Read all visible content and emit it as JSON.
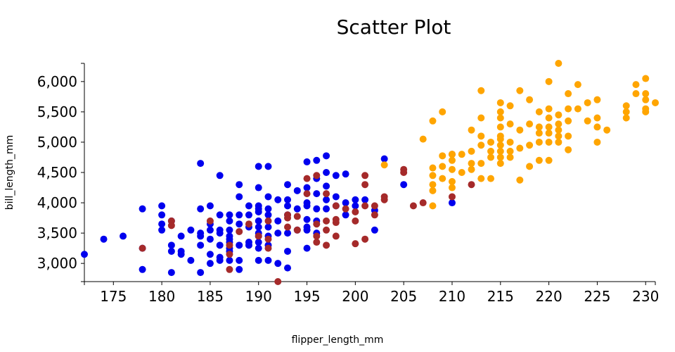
{
  "chart_data": {
    "type": "scatter",
    "title": "Scatter Plot",
    "xlabel": "flipper_length_mm",
    "ylabel": "bill_length_mm",
    "xlim": [
      172,
      231
    ],
    "ylim": [
      2700,
      6300
    ],
    "xticks": [
      175,
      180,
      185,
      190,
      195,
      200,
      205,
      210,
      215,
      220,
      225,
      230
    ],
    "yticks": [
      3000,
      3500,
      4000,
      4500,
      5000,
      5500,
      6000
    ],
    "ytick_labels": [
      "3,000",
      "3,500",
      "4,000",
      "4,500",
      "5,000",
      "5,500",
      "6,000"
    ],
    "grid": false,
    "legend": "none",
    "series": [
      {
        "color": "#0000ee",
        "points": [
          [
            172,
            3150
          ],
          [
            174,
            3400
          ],
          [
            176,
            3450
          ],
          [
            178,
            3900
          ],
          [
            178,
            3250
          ],
          [
            178,
            2900
          ],
          [
            180,
            3950
          ],
          [
            180,
            3800
          ],
          [
            180,
            3650
          ],
          [
            180,
            3550
          ],
          [
            181,
            3700
          ],
          [
            181,
            3300
          ],
          [
            181,
            3200
          ],
          [
            181,
            2850
          ],
          [
            182,
            3450
          ],
          [
            182,
            3200
          ],
          [
            182,
            3150
          ],
          [
            183,
            3550
          ],
          [
            183,
            3050
          ],
          [
            184,
            4650
          ],
          [
            184,
            3900
          ],
          [
            184,
            3500
          ],
          [
            184,
            3450
          ],
          [
            184,
            3300
          ],
          [
            184,
            2850
          ],
          [
            185,
            3950
          ],
          [
            185,
            3650
          ],
          [
            185,
            3550
          ],
          [
            185,
            3400
          ],
          [
            185,
            3150
          ],
          [
            185,
            3000
          ],
          [
            186,
            4450
          ],
          [
            186,
            3800
          ],
          [
            186,
            3550
          ],
          [
            186,
            3500
          ],
          [
            186,
            3300
          ],
          [
            186,
            3100
          ],
          [
            186,
            3050
          ],
          [
            187,
            3800
          ],
          [
            187,
            3700
          ],
          [
            187,
            3550
          ],
          [
            187,
            3450
          ],
          [
            187,
            3400
          ],
          [
            187,
            3350
          ],
          [
            187,
            3250
          ],
          [
            187,
            3200
          ],
          [
            187,
            3050
          ],
          [
            188,
            4300
          ],
          [
            188,
            4100
          ],
          [
            188,
            3800
          ],
          [
            188,
            3650
          ],
          [
            188,
            3300
          ],
          [
            188,
            3050
          ],
          [
            188,
            2900
          ],
          [
            189,
            3950
          ],
          [
            189,
            3800
          ],
          [
            189,
            3600
          ],
          [
            189,
            3350
          ],
          [
            189,
            3300
          ],
          [
            190,
            4600
          ],
          [
            190,
            4250
          ],
          [
            190,
            3950
          ],
          [
            190,
            3900
          ],
          [
            190,
            3850
          ],
          [
            190,
            3700
          ],
          [
            190,
            3600
          ],
          [
            190,
            3500
          ],
          [
            190,
            3450
          ],
          [
            190,
            3350
          ],
          [
            190,
            3250
          ],
          [
            190,
            3050
          ],
          [
            191,
            4600
          ],
          [
            191,
            4100
          ],
          [
            191,
            3900
          ],
          [
            191,
            3800
          ],
          [
            191,
            3600
          ],
          [
            191,
            3450
          ],
          [
            191,
            3300
          ],
          [
            191,
            3050
          ],
          [
            192,
            4050
          ],
          [
            192,
            3700
          ],
          [
            192,
            3500
          ],
          [
            192,
            3000
          ],
          [
            193,
            4300
          ],
          [
            193,
            4050
          ],
          [
            193,
            3950
          ],
          [
            193,
            3800
          ],
          [
            193,
            3500
          ],
          [
            193,
            3200
          ],
          [
            193,
            2925
          ],
          [
            194,
            4200
          ],
          [
            194,
            3900
          ],
          [
            194,
            3550
          ],
          [
            195,
            4675
          ],
          [
            195,
            4250
          ],
          [
            195,
            4000
          ],
          [
            195,
            3950
          ],
          [
            195,
            3725
          ],
          [
            195,
            3600
          ],
          [
            195,
            3550
          ],
          [
            195,
            3250
          ],
          [
            196,
            4700
          ],
          [
            196,
            4400
          ],
          [
            196,
            4150
          ],
          [
            196,
            3900
          ],
          [
            196,
            3700
          ],
          [
            196,
            3500
          ],
          [
            197,
            4775
          ],
          [
            197,
            4500
          ],
          [
            197,
            4275
          ],
          [
            197,
            4050
          ],
          [
            197,
            3900
          ],
          [
            198,
            4450
          ],
          [
            198,
            4100
          ],
          [
            198,
            3950
          ],
          [
            199,
            4475
          ],
          [
            199,
            4000
          ],
          [
            199,
            3800
          ],
          [
            200,
            4050
          ],
          [
            200,
            3950
          ],
          [
            201,
            4050
          ],
          [
            202,
            3875
          ],
          [
            202,
            3550
          ],
          [
            203,
            4725
          ],
          [
            205,
            4300
          ],
          [
            210,
            4000
          ]
        ]
      },
      {
        "color": "#a52a2a",
        "points": [
          [
            178,
            3250
          ],
          [
            181,
            3700
          ],
          [
            181,
            3625
          ],
          [
            185,
            3700
          ],
          [
            187,
            3300
          ],
          [
            187,
            3150
          ],
          [
            187,
            2900
          ],
          [
            188,
            3525
          ],
          [
            189,
            3650
          ],
          [
            190,
            3450
          ],
          [
            191,
            3700
          ],
          [
            191,
            3400
          ],
          [
            191,
            3250
          ],
          [
            192,
            2700
          ],
          [
            193,
            3800
          ],
          [
            193,
            3600
          ],
          [
            193,
            3750
          ],
          [
            194,
            3775
          ],
          [
            194,
            3550
          ],
          [
            195,
            4400
          ],
          [
            195,
            4150
          ],
          [
            196,
            4450
          ],
          [
            196,
            3650
          ],
          [
            196,
            3450
          ],
          [
            196,
            3350
          ],
          [
            197,
            4150
          ],
          [
            197,
            3700
          ],
          [
            197,
            3550
          ],
          [
            197,
            3300
          ],
          [
            198,
            3950
          ],
          [
            198,
            3725
          ],
          [
            198,
            3675
          ],
          [
            198,
            3450
          ],
          [
            199,
            3900
          ],
          [
            200,
            3850
          ],
          [
            200,
            3700
          ],
          [
            200,
            3325
          ],
          [
            201,
            4450
          ],
          [
            201,
            4300
          ],
          [
            201,
            3950
          ],
          [
            201,
            3400
          ],
          [
            202,
            3950
          ],
          [
            202,
            3800
          ],
          [
            203,
            4100
          ],
          [
            203,
            4050
          ],
          [
            205,
            4550
          ],
          [
            205,
            4500
          ],
          [
            206,
            3950
          ],
          [
            207,
            4000
          ],
          [
            210,
            4800
          ],
          [
            210,
            4100
          ],
          [
            212,
            4300
          ]
        ]
      },
      {
        "color": "#ffa500",
        "points": [
          [
            203,
            4625
          ],
          [
            207,
            5050
          ],
          [
            208,
            5350
          ],
          [
            208,
            4575
          ],
          [
            208,
            4450
          ],
          [
            208,
            4300
          ],
          [
            208,
            4200
          ],
          [
            208,
            3950
          ],
          [
            209,
            5500
          ],
          [
            209,
            4775
          ],
          [
            209,
            4600
          ],
          [
            209,
            4400
          ],
          [
            210,
            4800
          ],
          [
            210,
            4700
          ],
          [
            210,
            4550
          ],
          [
            210,
            4350
          ],
          [
            210,
            4250
          ],
          [
            211,
            4800
          ],
          [
            211,
            4500
          ],
          [
            212,
            5200
          ],
          [
            212,
            4850
          ],
          [
            212,
            4650
          ],
          [
            212,
            4550
          ],
          [
            213,
            5850
          ],
          [
            213,
            5400
          ],
          [
            213,
            5100
          ],
          [
            213,
            4950
          ],
          [
            213,
            4650
          ],
          [
            213,
            4400
          ],
          [
            214,
            5000
          ],
          [
            214,
            4850
          ],
          [
            214,
            4750
          ],
          [
            214,
            4400
          ],
          [
            215,
            5650
          ],
          [
            215,
            5500
          ],
          [
            215,
            5400
          ],
          [
            215,
            5250
          ],
          [
            215,
            5100
          ],
          [
            215,
            5050
          ],
          [
            215,
            4950
          ],
          [
            215,
            4850
          ],
          [
            215,
            4750
          ],
          [
            215,
            4650
          ],
          [
            216,
            5600
          ],
          [
            216,
            5300
          ],
          [
            216,
            5000
          ],
          [
            216,
            4850
          ],
          [
            216,
            4750
          ],
          [
            217,
            5850
          ],
          [
            217,
            5200
          ],
          [
            217,
            4900
          ],
          [
            217,
            4375
          ],
          [
            218,
            5700
          ],
          [
            218,
            5300
          ],
          [
            218,
            4950
          ],
          [
            218,
            4600
          ],
          [
            219,
            5500
          ],
          [
            219,
            5250
          ],
          [
            219,
            5150
          ],
          [
            219,
            5000
          ],
          [
            219,
            4700
          ],
          [
            220,
            6000
          ],
          [
            220,
            5550
          ],
          [
            220,
            5400
          ],
          [
            220,
            5250
          ],
          [
            220,
            5150
          ],
          [
            220,
            5000
          ],
          [
            220,
            4700
          ],
          [
            221,
            6300
          ],
          [
            221,
            5450
          ],
          [
            221,
            5300
          ],
          [
            221,
            5200
          ],
          [
            221,
            5100
          ],
          [
            221,
            5000
          ],
          [
            222,
            5800
          ],
          [
            222,
            5550
          ],
          [
            222,
            5350
          ],
          [
            222,
            5100
          ],
          [
            222,
            4875
          ],
          [
            223,
            5950
          ],
          [
            223,
            5550
          ],
          [
            224,
            5650
          ],
          [
            224,
            5350
          ],
          [
            225,
            5700
          ],
          [
            225,
            5400
          ],
          [
            225,
            5250
          ],
          [
            225,
            5000
          ],
          [
            226,
            5200
          ],
          [
            228,
            5600
          ],
          [
            228,
            5500
          ],
          [
            228,
            5400
          ],
          [
            229,
            5950
          ],
          [
            229,
            5800
          ],
          [
            230,
            6050
          ],
          [
            230,
            5800
          ],
          [
            230,
            5700
          ],
          [
            230,
            5550
          ],
          [
            230,
            5500
          ],
          [
            231,
            5650
          ]
        ]
      }
    ]
  }
}
